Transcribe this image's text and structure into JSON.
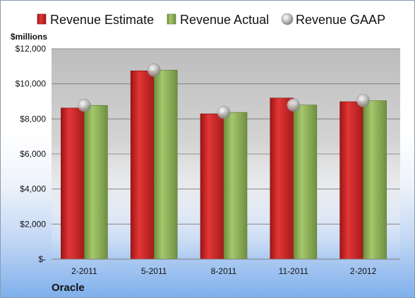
{
  "chart_data": {
    "type": "bar",
    "title": "",
    "company": "Oracle",
    "unit_label": "$millions",
    "categories": [
      "2-2011",
      "5-2011",
      "8-2011",
      "11-2011",
      "2-2012"
    ],
    "series": [
      {
        "name": "Revenue Estimate",
        "type": "bar",
        "color": "#cc2a2a",
        "values": [
          8620,
          10740,
          8290,
          9190,
          8980
        ]
      },
      {
        "name": "Revenue Actual",
        "type": "bar",
        "color": "#8cb058",
        "values": [
          8770,
          10780,
          8370,
          8790,
          9040
        ]
      },
      {
        "name": "Revenue GAAP",
        "type": "marker",
        "color": "#b8b8b8",
        "values": [
          8770,
          10780,
          8370,
          8790,
          9040
        ]
      }
    ],
    "y_ticks": [
      0,
      2000,
      4000,
      6000,
      8000,
      10000,
      12000
    ],
    "y_tick_labels": [
      "$-",
      "$2,000",
      "$4,000",
      "$6,000",
      "$8,000",
      "$10,000",
      "$12,000"
    ],
    "ylim": [
      0,
      12000
    ],
    "grid": true,
    "legend_position": "top"
  }
}
